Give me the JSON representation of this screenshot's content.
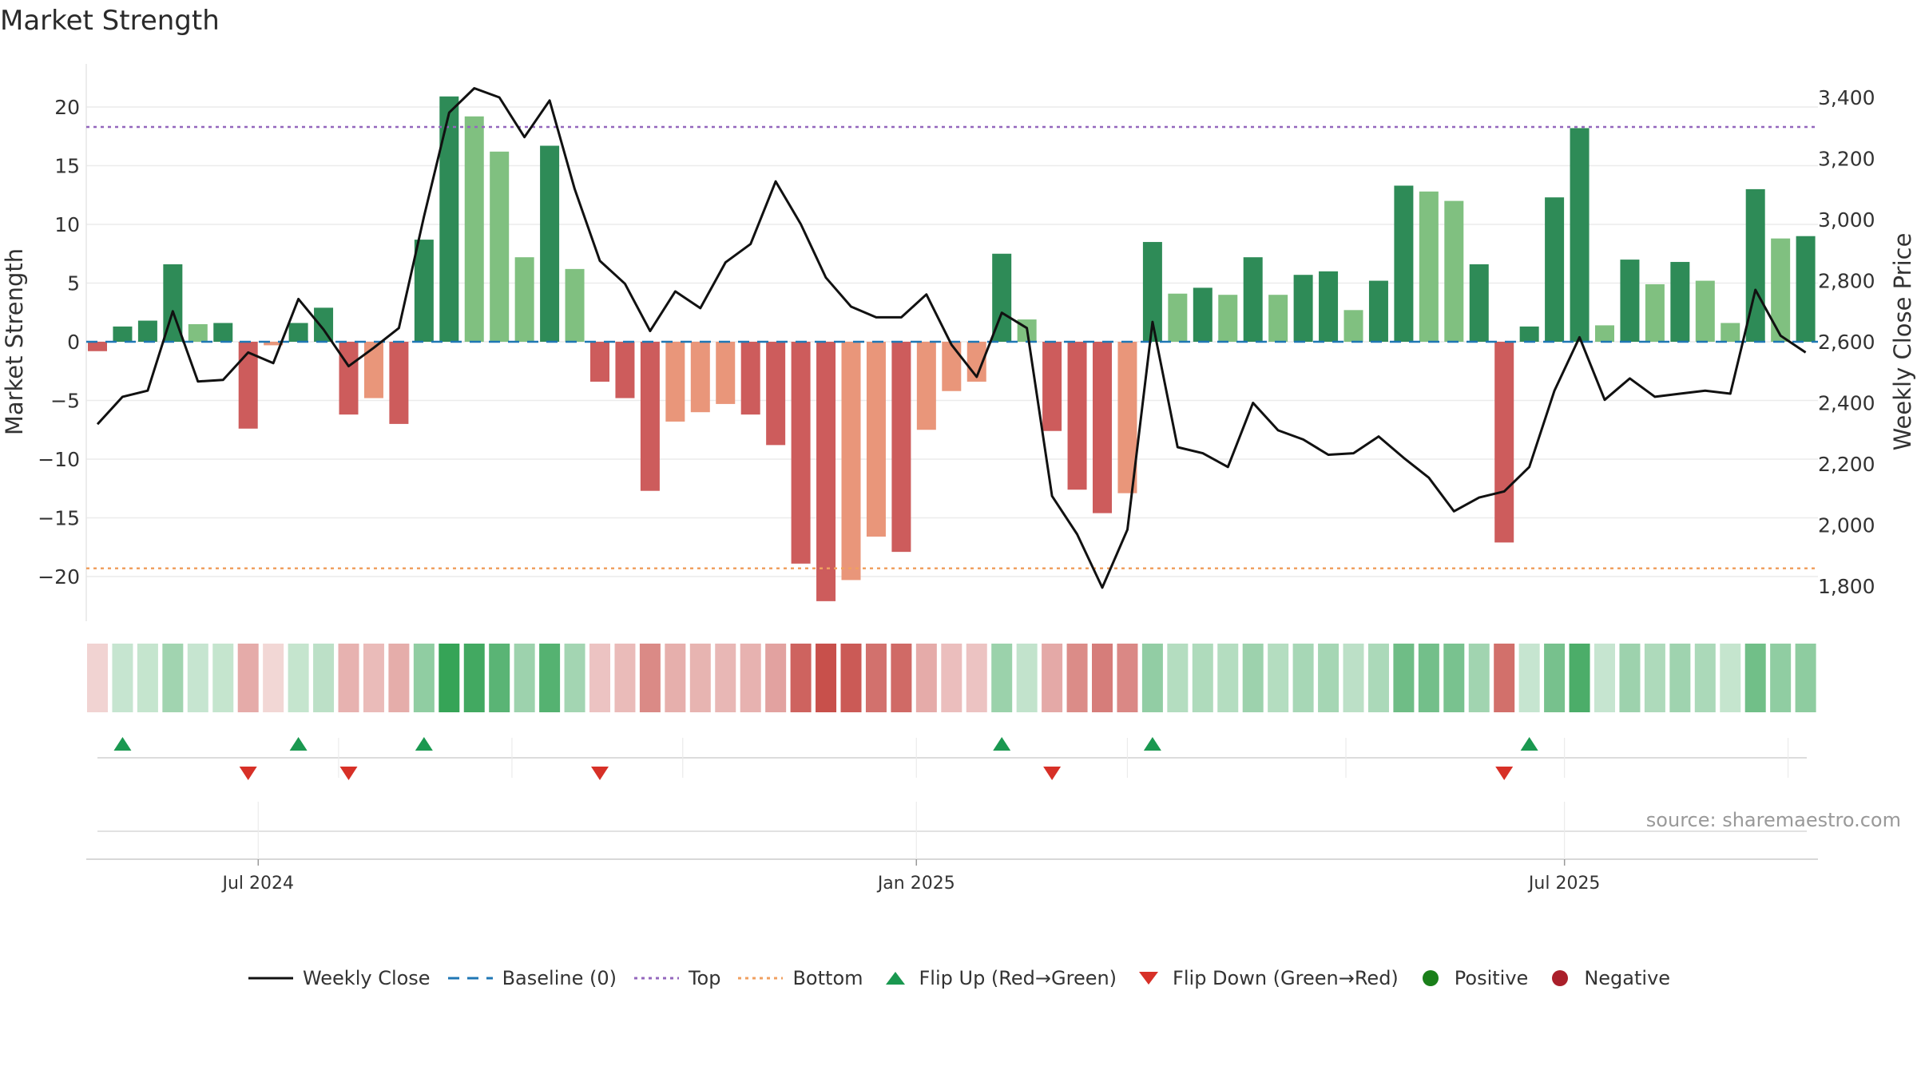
{
  "chart_data": {
    "type": "bar",
    "title": "Market Strength",
    "source": "source: sharemaestro.com",
    "ylabel_left": "Market Strength",
    "ylabel_right": "Weekly Close Price",
    "ylim_left": [
      -24,
      24
    ],
    "ylim_right": [
      1690,
      3450
    ],
    "yticks_left": [
      20,
      15,
      10,
      5,
      0,
      -5,
      -10,
      -15,
      -20
    ],
    "yticks_left_labels": [
      "20",
      "15",
      "10",
      "5",
      "0",
      "−5",
      "−10",
      "−15",
      "−20"
    ],
    "yticks_right": [
      3400,
      3200,
      3000,
      2800,
      2600,
      2400,
      2200,
      2000,
      1800
    ],
    "yticks_right_labels": [
      "3,400",
      "3,200",
      "3,000",
      "2,800",
      "2,600",
      "2,400",
      "2,200",
      "2,000",
      "1,800"
    ],
    "top_line": 18.3,
    "bottom_line": -19.3,
    "baseline": 0,
    "xticks": [
      {
        "label": "Jul 2024",
        "index": 6.4
      },
      {
        "label": "Jan 2025",
        "index": 32.6
      },
      {
        "label": "Jul 2025",
        "index": 58.4
      }
    ],
    "values": [
      -0.8,
      1.3,
      1.8,
      6.6,
      1.5,
      1.6,
      -7.4,
      -0.3,
      1.6,
      2.9,
      -6.2,
      -4.8,
      -7.0,
      8.7,
      20.9,
      19.2,
      16.2,
      7.2,
      16.7,
      6.2,
      -3.4,
      -4.8,
      -12.7,
      -6.8,
      -6.0,
      -5.3,
      -6.2,
      -8.8,
      -18.9,
      -22.1,
      -20.3,
      -16.6,
      -17.9,
      -7.5,
      -4.2,
      -3.4,
      7.5,
      1.9,
      -7.6,
      -12.6,
      -14.6,
      -12.9,
      8.5,
      4.1,
      4.6,
      4.0,
      7.2,
      4.0,
      5.7,
      6.0,
      2.7,
      5.2,
      13.3,
      12.8,
      12.0,
      6.6,
      -17.1,
      1.3,
      12.3,
      18.2,
      1.4,
      7.0,
      4.9,
      6.8,
      5.2,
      1.6,
      13.0,
      8.8,
      9.0
    ],
    "close": [
      2330,
      2420,
      2440,
      2700,
      2470,
      2475,
      2565,
      2530,
      2740,
      2640,
      2520,
      2580,
      2645,
      3010,
      3350,
      3430,
      3400,
      3270,
      3390,
      3100,
      2865,
      2790,
      2635,
      2765,
      2710,
      2860,
      2920,
      3125,
      2985,
      2810,
      2715,
      2680,
      2680,
      2755,
      2590,
      2485,
      2695,
      2645,
      2095,
      1970,
      1795,
      1985,
      2665,
      2255,
      2235,
      2190,
      2400,
      2310,
      2280,
      2230,
      2235,
      2290,
      2220,
      2155,
      2045,
      2090,
      2110,
      2190,
      2440,
      2615,
      2410,
      2480,
      2420,
      2430,
      2440,
      2430,
      2770,
      2620,
      2565
    ],
    "flips_up": [
      1,
      8,
      13,
      36,
      42,
      57
    ],
    "flips_down": [
      6,
      10,
      20,
      38,
      56
    ],
    "colors": {
      "pos_strong": "#2e8b57",
      "pos_weak": "#80c080",
      "neg_strong": "#cd5c5c",
      "neg_weak": "#e9967a",
      "line": "#111111",
      "baseline": "#1f77b4",
      "top": "#9467bd",
      "bottom": "#f0a060",
      "flip_up": "#1a9850",
      "flip_down": "#d73027",
      "positive_dot": "#1a7f1a",
      "negative_dot": "#aa1f2a"
    },
    "legend": [
      {
        "label": "Weekly Close",
        "kind": "line"
      },
      {
        "label": "Baseline (0)",
        "kind": "baseline"
      },
      {
        "label": "Top",
        "kind": "top"
      },
      {
        "label": "Bottom",
        "kind": "bottom"
      },
      {
        "label": "Flip Up (Red→Green)",
        "kind": "flip_up"
      },
      {
        "label": "Flip Down (Green→Red)",
        "kind": "flip_down"
      },
      {
        "label": "Positive",
        "kind": "positive"
      },
      {
        "label": "Negative",
        "kind": "negative"
      }
    ]
  }
}
